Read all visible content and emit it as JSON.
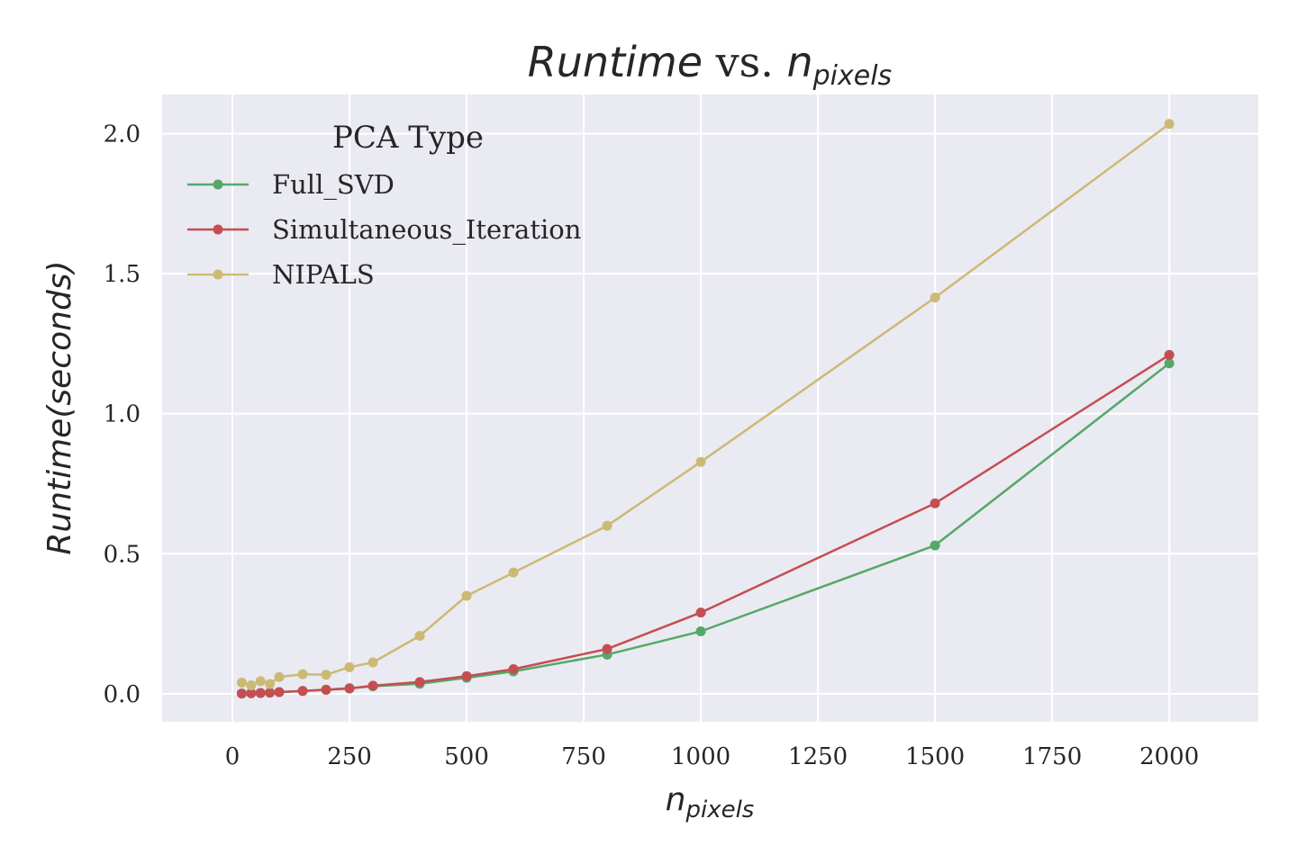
{
  "chart_data": {
    "type": "line",
    "title": {
      "main": "Runtime",
      "separator": " vs. ",
      "var": "n",
      "var_sub": "pixels"
    },
    "xlabel": {
      "var": "n",
      "var_sub": "pixels"
    },
    "ylabel": "Runtime(seconds)",
    "xlim": [
      -150,
      2190
    ],
    "ylim": [
      -0.1,
      2.14
    ],
    "xticks": [
      0,
      250,
      500,
      750,
      1000,
      1250,
      1500,
      1750,
      2000
    ],
    "xtick_labels": [
      "0",
      "250",
      "500",
      "750",
      "1000",
      "1250",
      "1500",
      "1750",
      "2000"
    ],
    "yticks": [
      0.0,
      0.5,
      1.0,
      1.5,
      2.0
    ],
    "ytick_labels": [
      "0.0",
      "0.5",
      "1.0",
      "1.5",
      "2.0"
    ],
    "grid": true,
    "legend": {
      "title": "PCA Type",
      "placement": "top-left"
    },
    "x": [
      20,
      40,
      60,
      80,
      100,
      150,
      200,
      250,
      300,
      400,
      500,
      600,
      800,
      1000,
      1500,
      2000
    ],
    "series": [
      {
        "name": "Full_SVD",
        "color": "#55a868",
        "values": [
          0.001,
          0.002,
          0.003,
          0.004,
          0.006,
          0.01,
          0.015,
          0.02,
          0.027,
          0.036,
          0.057,
          0.08,
          0.14,
          0.223,
          0.53,
          1.18
        ]
      },
      {
        "name": "Simultaneous_Iteration",
        "color": "#c44e52",
        "values": [
          0.001,
          0.002,
          0.003,
          0.004,
          0.006,
          0.01,
          0.014,
          0.019,
          0.029,
          0.042,
          0.063,
          0.088,
          0.16,
          0.29,
          0.68,
          1.21
        ]
      },
      {
        "name": "NIPALS",
        "color": "#ccb974",
        "values": [
          0.04,
          0.03,
          0.045,
          0.035,
          0.06,
          0.07,
          0.068,
          0.095,
          0.112,
          0.207,
          0.35,
          0.433,
          0.6,
          0.828,
          1.415,
          2.035
        ]
      }
    ]
  },
  "style": {
    "plot_background": "#eaeaf2",
    "grid_color": "#ffffff",
    "text_color": "#262626"
  }
}
